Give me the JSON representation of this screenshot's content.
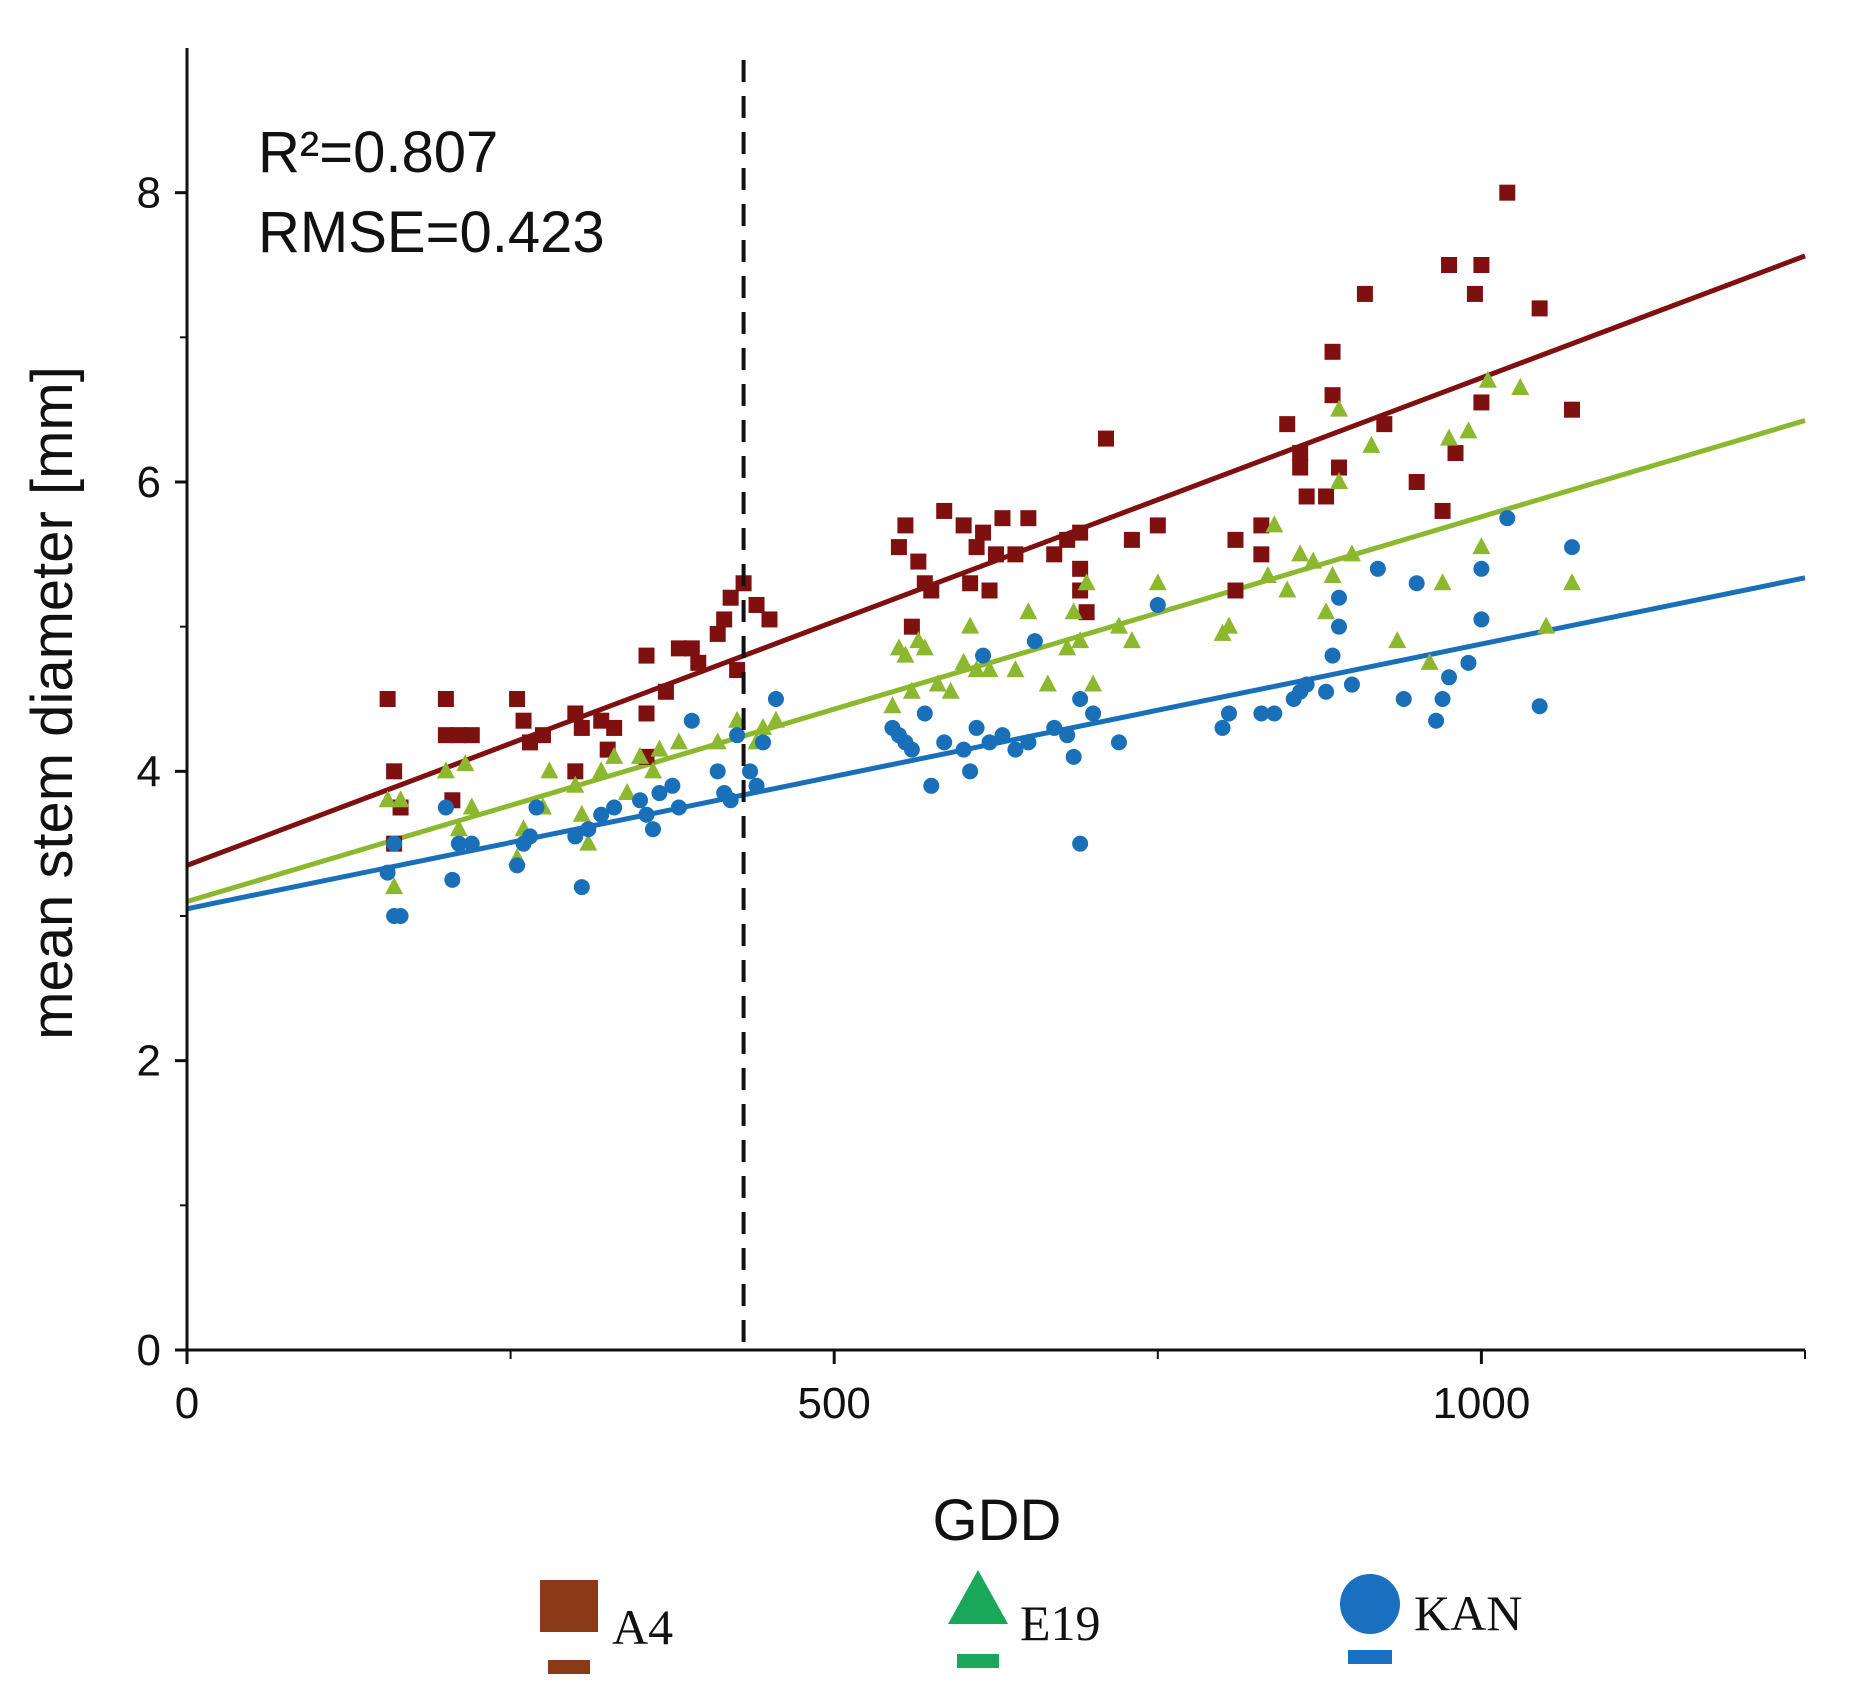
{
  "chart_data": {
    "type": "scatter",
    "xlabel": "GDD",
    "ylabel": "mean stem diameter [mm]",
    "xlim": [
      0,
      1250
    ],
    "ylim": [
      0,
      9
    ],
    "xticks": [
      0,
      500,
      1000
    ],
    "yticks": [
      0,
      2,
      4,
      6,
      8
    ],
    "stats": {
      "r2": "R²=0.807",
      "rmse": "RMSE=0.423"
    },
    "vline_x": 430,
    "colors": {
      "A4": "#7f1010",
      "E19": "#8cb830",
      "KAN": "#1a70b8",
      "legend_A4": "#8b3a17",
      "legend_E19": "#19a85a",
      "legend_KAN": "#1a6fc0"
    },
    "series": [
      {
        "name": "A4",
        "marker": "square",
        "fit": {
          "intercept": 3.35,
          "slope": 0.00337
        },
        "points": [
          [
            155,
            4.5
          ],
          [
            160,
            4.0
          ],
          [
            165,
            3.75
          ],
          [
            160,
            3.5
          ],
          [
            200,
            4.5
          ],
          [
            200,
            4.25
          ],
          [
            210,
            4.25
          ],
          [
            220,
            4.25
          ],
          [
            205,
            3.8
          ],
          [
            255,
            4.5
          ],
          [
            260,
            4.35
          ],
          [
            265,
            4.2
          ],
          [
            275,
            4.25
          ],
          [
            300,
            4.4
          ],
          [
            305,
            4.3
          ],
          [
            320,
            4.35
          ],
          [
            325,
            4.15
          ],
          [
            300,
            4.0
          ],
          [
            330,
            4.3
          ],
          [
            355,
            4.4
          ],
          [
            355,
            4.1
          ],
          [
            355,
            4.8
          ],
          [
            370,
            4.55
          ],
          [
            380,
            4.85
          ],
          [
            390,
            4.85
          ],
          [
            395,
            4.75
          ],
          [
            410,
            4.95
          ],
          [
            415,
            5.05
          ],
          [
            420,
            5.2
          ],
          [
            430,
            5.3
          ],
          [
            440,
            5.15
          ],
          [
            450,
            5.05
          ],
          [
            425,
            4.7
          ],
          [
            550,
            5.55
          ],
          [
            555,
            5.7
          ],
          [
            560,
            5.0
          ],
          [
            565,
            5.45
          ],
          [
            570,
            5.3
          ],
          [
            575,
            5.25
          ],
          [
            585,
            5.8
          ],
          [
            600,
            5.7
          ],
          [
            605,
            5.3
          ],
          [
            610,
            5.55
          ],
          [
            615,
            5.65
          ],
          [
            620,
            5.25
          ],
          [
            625,
            5.5
          ],
          [
            630,
            5.75
          ],
          [
            640,
            5.5
          ],
          [
            650,
            5.75
          ],
          [
            670,
            5.5
          ],
          [
            680,
            5.6
          ],
          [
            690,
            5.65
          ],
          [
            690,
            5.4
          ],
          [
            690,
            5.25
          ],
          [
            695,
            5.1
          ],
          [
            710,
            6.3
          ],
          [
            730,
            5.6
          ],
          [
            750,
            5.7
          ],
          [
            810,
            5.6
          ],
          [
            810,
            5.25
          ],
          [
            830,
            5.7
          ],
          [
            830,
            5.5
          ],
          [
            850,
            6.4
          ],
          [
            860,
            6.2
          ],
          [
            860,
            6.1
          ],
          [
            865,
            5.9
          ],
          [
            880,
            5.9
          ],
          [
            885,
            6.9
          ],
          [
            885,
            6.6
          ],
          [
            890,
            6.1
          ],
          [
            910,
            7.3
          ],
          [
            925,
            6.4
          ],
          [
            950,
            6.0
          ],
          [
            975,
            7.5
          ],
          [
            970,
            5.8
          ],
          [
            980,
            6.2
          ],
          [
            995,
            7.3
          ],
          [
            1000,
            7.5
          ],
          [
            1000,
            6.55
          ],
          [
            1020,
            8.0
          ],
          [
            1045,
            7.2
          ],
          [
            1070,
            6.5
          ]
        ]
      },
      {
        "name": "E19",
        "marker": "triangle",
        "fit": {
          "intercept": 3.1,
          "slope": 0.00266
        },
        "points": [
          [
            155,
            3.8
          ],
          [
            165,
            3.8
          ],
          [
            160,
            3.2
          ],
          [
            200,
            4.0
          ],
          [
            210,
            3.6
          ],
          [
            215,
            4.05
          ],
          [
            220,
            3.75
          ],
          [
            255,
            3.4
          ],
          [
            260,
            3.6
          ],
          [
            275,
            3.75
          ],
          [
            280,
            4.0
          ],
          [
            300,
            3.9
          ],
          [
            305,
            3.7
          ],
          [
            310,
            3.5
          ],
          [
            320,
            4.0
          ],
          [
            330,
            4.1
          ],
          [
            340,
            3.85
          ],
          [
            350,
            4.1
          ],
          [
            360,
            4.0
          ],
          [
            365,
            4.15
          ],
          [
            380,
            4.2
          ],
          [
            410,
            4.2
          ],
          [
            425,
            4.35
          ],
          [
            440,
            4.2
          ],
          [
            445,
            4.3
          ],
          [
            455,
            4.35
          ],
          [
            545,
            4.45
          ],
          [
            550,
            4.85
          ],
          [
            555,
            4.8
          ],
          [
            560,
            4.55
          ],
          [
            565,
            4.9
          ],
          [
            570,
            4.85
          ],
          [
            580,
            4.6
          ],
          [
            590,
            4.55
          ],
          [
            600,
            4.75
          ],
          [
            605,
            5.0
          ],
          [
            610,
            4.7
          ],
          [
            620,
            4.7
          ],
          [
            640,
            4.7
          ],
          [
            650,
            5.1
          ],
          [
            665,
            4.6
          ],
          [
            680,
            4.85
          ],
          [
            685,
            5.1
          ],
          [
            690,
            4.9
          ],
          [
            695,
            5.3
          ],
          [
            700,
            4.6
          ],
          [
            720,
            5.0
          ],
          [
            730,
            4.9
          ],
          [
            750,
            5.3
          ],
          [
            800,
            4.95
          ],
          [
            805,
            5.0
          ],
          [
            835,
            5.35
          ],
          [
            840,
            5.7
          ],
          [
            850,
            5.25
          ],
          [
            860,
            5.5
          ],
          [
            870,
            5.45
          ],
          [
            880,
            5.1
          ],
          [
            885,
            5.35
          ],
          [
            890,
            6.5
          ],
          [
            890,
            6.0
          ],
          [
            900,
            5.5
          ],
          [
            915,
            6.25
          ],
          [
            935,
            4.9
          ],
          [
            960,
            4.75
          ],
          [
            970,
            5.3
          ],
          [
            975,
            6.3
          ],
          [
            990,
            6.35
          ],
          [
            1000,
            5.55
          ],
          [
            1005,
            6.7
          ],
          [
            1030,
            6.65
          ],
          [
            1050,
            5.0
          ],
          [
            1070,
            5.3
          ]
        ]
      },
      {
        "name": "KAN",
        "marker": "circle",
        "fit": {
          "intercept": 3.05,
          "slope": 0.00183
        },
        "points": [
          [
            155,
            3.3
          ],
          [
            160,
            3.0
          ],
          [
            165,
            3.0
          ],
          [
            160,
            3.5
          ],
          [
            200,
            3.75
          ],
          [
            205,
            3.25
          ],
          [
            210,
            3.5
          ],
          [
            220,
            3.5
          ],
          [
            255,
            3.35
          ],
          [
            260,
            3.5
          ],
          [
            265,
            3.55
          ],
          [
            270,
            3.75
          ],
          [
            300,
            3.55
          ],
          [
            305,
            3.2
          ],
          [
            310,
            3.6
          ],
          [
            320,
            3.7
          ],
          [
            330,
            3.75
          ],
          [
            350,
            3.8
          ],
          [
            355,
            3.7
          ],
          [
            360,
            3.6
          ],
          [
            365,
            3.85
          ],
          [
            375,
            3.9
          ],
          [
            380,
            3.75
          ],
          [
            390,
            4.35
          ],
          [
            410,
            4.0
          ],
          [
            415,
            3.85
          ],
          [
            420,
            3.8
          ],
          [
            425,
            4.25
          ],
          [
            435,
            4.0
          ],
          [
            440,
            3.9
          ],
          [
            445,
            4.2
          ],
          [
            455,
            4.5
          ],
          [
            545,
            4.3
          ],
          [
            550,
            4.25
          ],
          [
            555,
            4.2
          ],
          [
            560,
            4.15
          ],
          [
            570,
            4.4
          ],
          [
            575,
            3.9
          ],
          [
            585,
            4.2
          ],
          [
            600,
            4.15
          ],
          [
            605,
            4.0
          ],
          [
            610,
            4.3
          ],
          [
            615,
            4.8
          ],
          [
            620,
            4.2
          ],
          [
            630,
            4.25
          ],
          [
            640,
            4.15
          ],
          [
            650,
            4.2
          ],
          [
            655,
            4.9
          ],
          [
            670,
            4.3
          ],
          [
            680,
            4.25
          ],
          [
            685,
            4.1
          ],
          [
            690,
            4.5
          ],
          [
            690,
            3.5
          ],
          [
            700,
            4.4
          ],
          [
            720,
            4.2
          ],
          [
            750,
            5.15
          ],
          [
            800,
            4.3
          ],
          [
            805,
            4.4
          ],
          [
            830,
            4.4
          ],
          [
            840,
            4.4
          ],
          [
            855,
            4.5
          ],
          [
            860,
            4.55
          ],
          [
            865,
            4.6
          ],
          [
            880,
            4.55
          ],
          [
            885,
            4.8
          ],
          [
            890,
            5.0
          ],
          [
            890,
            5.2
          ],
          [
            900,
            4.6
          ],
          [
            920,
            5.4
          ],
          [
            940,
            4.5
          ],
          [
            950,
            5.3
          ],
          [
            965,
            4.35
          ],
          [
            970,
            4.5
          ],
          [
            975,
            4.65
          ],
          [
            990,
            4.75
          ],
          [
            1000,
            5.05
          ],
          [
            1000,
            5.4
          ],
          [
            1020,
            5.75
          ],
          [
            1045,
            4.45
          ],
          [
            1070,
            5.55
          ]
        ]
      }
    ],
    "legend": [
      {
        "label": "A4",
        "marker": "square"
      },
      {
        "label": "E19",
        "marker": "triangle"
      },
      {
        "label": "KAN",
        "marker": "circle"
      }
    ]
  }
}
